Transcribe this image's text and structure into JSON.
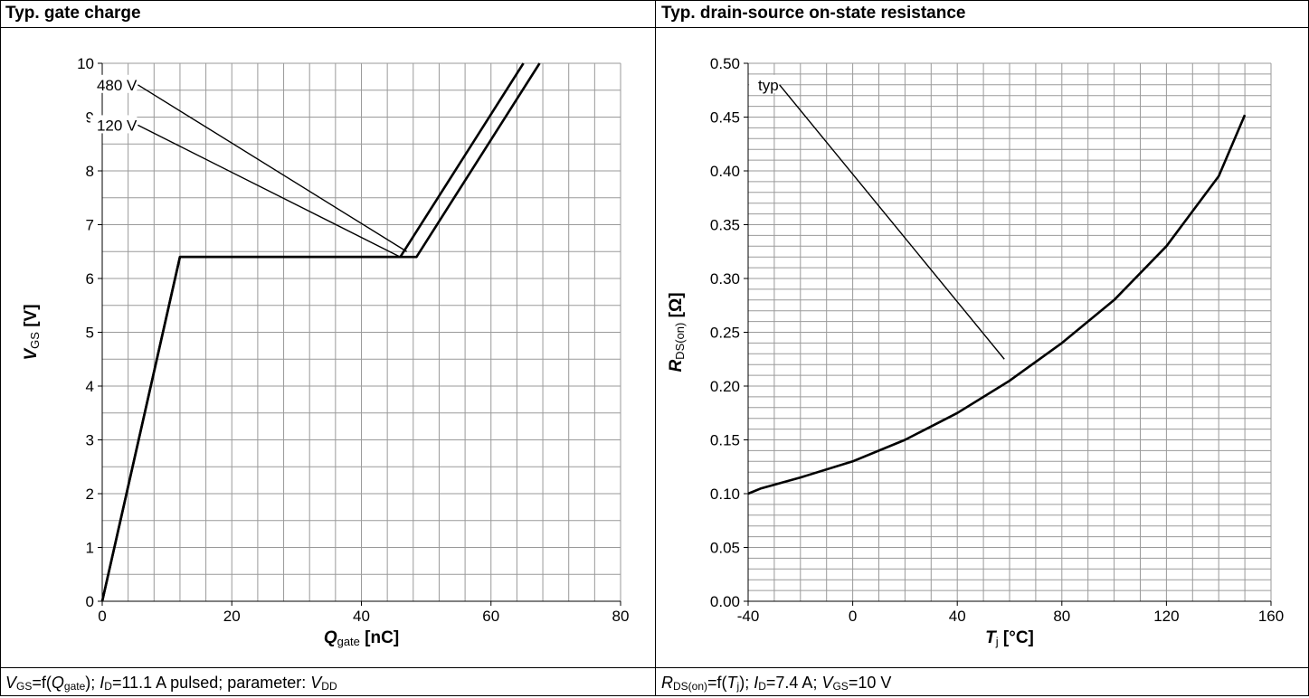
{
  "panels": [
    {
      "title": "Typ. gate charge",
      "footer": {
        "f1_sym": "V",
        "f1_sub": "GS",
        "f1_txt": "=f(",
        "f2_sym": "Q",
        "f2_sub": "gate",
        "f2_txt": "); ",
        "f3_sym": "I",
        "f3_sub": "D",
        "f3_txt": "=11.1 A pulsed; parameter: ",
        "f4_sym": "V",
        "f4_sub": "DD"
      }
    },
    {
      "title": "Typ. drain-source on-state resistance",
      "footer": {
        "f1_sym": "R",
        "f1_sub": "DS(on)",
        "f1_txt": "=f(",
        "f2_sym": "T",
        "f2_sub": "j",
        "f2_txt": "); ",
        "f3_sym": "I",
        "f3_sub": "D",
        "f3_txt": "=7.4 A; ",
        "f4_sym": "V",
        "f4_sub": "GS",
        "f4_txt": "=10 V"
      }
    }
  ],
  "chart_data": [
    {
      "type": "line",
      "title": "Typ. gate charge",
      "xlabel": {
        "sym": "Q",
        "sub": "gate",
        "unit": " [nC]"
      },
      "ylabel": {
        "sym": "V",
        "sub": "GS",
        "unit": " [V]"
      },
      "xlim": [
        0,
        80
      ],
      "ylim": [
        0,
        10
      ],
      "xticks": [
        0,
        20,
        40,
        60,
        80
      ],
      "yticks": [
        0,
        1,
        2,
        3,
        4,
        5,
        6,
        7,
        8,
        9,
        10
      ],
      "grid": true,
      "series": [
        {
          "name": "120 V",
          "x": [
            0,
            12,
            46,
            65
          ],
          "y": [
            0,
            6.4,
            6.4,
            10
          ]
        },
        {
          "name": "480 V",
          "x": [
            0,
            12,
            48.5,
            67.5
          ],
          "y": [
            0,
            6.4,
            6.4,
            10
          ]
        }
      ],
      "annotations": [
        {
          "text": "480 V",
          "label_at": [
            5.5,
            9.6
          ],
          "target": [
            47,
            6.5
          ]
        },
        {
          "text": "120 V",
          "label_at": [
            5.5,
            8.85
          ],
          "target": [
            46,
            6.4
          ]
        }
      ]
    },
    {
      "type": "line",
      "title": "Typ. drain-source on-state resistance",
      "xlabel": {
        "sym": "T",
        "sub": "j",
        "unit": " [°C]"
      },
      "ylabel": {
        "sym": "R",
        "sub": "DS(on)",
        "unit": " [Ω]"
      },
      "xlim": [
        -40,
        160
      ],
      "ylim": [
        0,
        0.5
      ],
      "xticks": [
        -40,
        0,
        40,
        80,
        120,
        160
      ],
      "yticks": [
        0.0,
        0.05,
        0.1,
        0.15,
        0.2,
        0.25,
        0.3,
        0.35,
        0.4,
        0.45,
        0.5
      ],
      "ytick_labels": [
        "0.00",
        "0.05",
        "0.10",
        "0.15",
        "0.20",
        "0.25",
        "0.30",
        "0.35",
        "0.40",
        "0.45",
        "0.50"
      ],
      "grid": true,
      "series": [
        {
          "name": "typ",
          "x": [
            -40,
            -35,
            -20,
            0,
            20,
            40,
            60,
            80,
            100,
            120,
            140,
            150
          ],
          "y": [
            0.1,
            0.105,
            0.115,
            0.13,
            0.15,
            0.175,
            0.205,
            0.24,
            0.28,
            0.33,
            0.395,
            0.452
          ]
        }
      ],
      "annotations": [
        {
          "text": "typ",
          "label_at": [
            -28,
            0.48
          ],
          "target": [
            58,
            0.225
          ]
        }
      ]
    }
  ]
}
